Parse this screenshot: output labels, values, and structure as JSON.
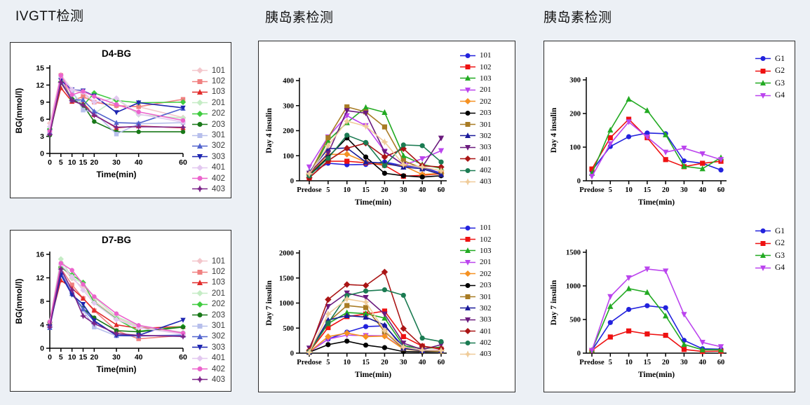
{
  "headers": [
    {
      "text": "IVGTT检测"
    },
    {
      "text": "胰岛素检测"
    },
    {
      "text": "胰岛素检测"
    }
  ],
  "chart_data": [
    {
      "id": "d4_bg",
      "type": "line",
      "title": "D4-BG",
      "xlabel": "Time(min)",
      "ylabel": "BG(mmol/l)",
      "x_mode": "linear",
      "x_values": [
        0,
        5,
        10,
        15,
        20,
        30,
        40,
        60
      ],
      "x_labels": [
        "0",
        "5",
        "10",
        "15",
        "20",
        "30",
        "40",
        "60"
      ],
      "ylim": [
        0,
        15
      ],
      "y_ticks": [
        0,
        3,
        6,
        9,
        12,
        15
      ],
      "grid": false,
      "legend_position": "right",
      "series": [
        {
          "name": "101",
          "color": "#F3C6CB",
          "marker": "diamond",
          "values": [
            5.3,
            13.8,
            11.2,
            10.5,
            9.0,
            8.3,
            8.2,
            6.3
          ]
        },
        {
          "name": "102",
          "color": "#F08080",
          "marker": "square",
          "values": [
            3.8,
            13.7,
            9.2,
            10.0,
            9.0,
            8.4,
            8.2,
            9.5
          ]
        },
        {
          "name": "103",
          "color": "#E12A2A",
          "marker": "triangle",
          "values": [
            3.7,
            11.5,
            9.1,
            8.8,
            6.8,
            4.5,
            4.8,
            4.5
          ]
        },
        {
          "name": "201",
          "color": "#C5ECC5",
          "marker": "diamond",
          "values": [
            4.3,
            13.2,
            10.8,
            8.4,
            7.0,
            9.6,
            6.8,
            6.2
          ]
        },
        {
          "name": "202",
          "color": "#3FCB3F",
          "marker": "diamond",
          "values": [
            4.3,
            12.6,
            9.6,
            8.4,
            10.6,
            9.3,
            8.9,
            9.0
          ]
        },
        {
          "name": "203",
          "color": "#187818",
          "marker": "circle",
          "values": [
            3.2,
            12.4,
            9.5,
            8.5,
            5.6,
            3.8,
            3.8,
            3.8
          ]
        },
        {
          "name": "301",
          "color": "#B7BFEC",
          "marker": "square",
          "values": [
            3.6,
            13.5,
            11.0,
            7.6,
            7.2,
            3.4,
            5.2,
            5.4
          ]
        },
        {
          "name": "302",
          "color": "#5163CE",
          "marker": "triangle",
          "values": [
            3.7,
            12.7,
            9.4,
            9.4,
            7.4,
            5.4,
            5.3,
            7.9
          ]
        },
        {
          "name": "303",
          "color": "#1D25B0",
          "marker": "triangle-down",
          "values": [
            3.8,
            12.8,
            11.2,
            11.0,
            10.1,
            7.2,
            8.9,
            8.0
          ]
        },
        {
          "name": "401",
          "color": "#E3C8F0",
          "marker": "diamond",
          "values": [
            4.7,
            13.6,
            11.2,
            10.8,
            9.0,
            9.7,
            6.9,
            5.5
          ]
        },
        {
          "name": "402",
          "color": "#EC63CC",
          "marker": "circle",
          "values": [
            3.9,
            13.7,
            10.3,
            10.9,
            10.0,
            8.6,
            7.3,
            5.8
          ]
        },
        {
          "name": "403",
          "color": "#7B2488",
          "marker": "star",
          "values": [
            3.3,
            12.5,
            9.3,
            8.5,
            6.7,
            4.6,
            4.7,
            4.6
          ]
        }
      ]
    },
    {
      "id": "d7_bg",
      "type": "line",
      "title": "D7-BG",
      "xlabel": "Time(min)",
      "ylabel": "BG(mmol/l)",
      "x_mode": "linear",
      "x_values": [
        0,
        5,
        10,
        15,
        20,
        30,
        40,
        60
      ],
      "x_labels": [
        "0",
        "5",
        "10",
        "15",
        "20",
        "30",
        "40",
        "60"
      ],
      "ylim": [
        0,
        16
      ],
      "y_ticks": [
        0,
        4,
        8,
        12,
        16
      ],
      "grid": false,
      "legend_position": "right",
      "series": [
        {
          "name": "101",
          "color": "#F3C6CB",
          "marker": "diamond",
          "values": [
            4.6,
            14.0,
            11.9,
            10.3,
            8.1,
            5.2,
            3.6,
            2.5
          ]
        },
        {
          "name": "102",
          "color": "#F08080",
          "marker": "square",
          "values": [
            4.2,
            13.6,
            10.8,
            8.5,
            6.4,
            3.0,
            1.6,
            2.2
          ]
        },
        {
          "name": "103",
          "color": "#E12A2A",
          "marker": "triangle",
          "values": [
            4.2,
            11.6,
            10.2,
            8.5,
            6.5,
            4.0,
            3.4,
            3.7
          ]
        },
        {
          "name": "201",
          "color": "#C5ECC5",
          "marker": "diamond",
          "values": [
            4.6,
            15.2,
            12.0,
            11.1,
            8.7,
            5.4,
            3.8,
            2.7
          ]
        },
        {
          "name": "202",
          "color": "#3FCB3F",
          "marker": "diamond",
          "values": [
            4.4,
            13.8,
            12.5,
            11.2,
            7.8,
            5.0,
            2.9,
            3.7
          ]
        },
        {
          "name": "203",
          "color": "#187818",
          "marker": "circle",
          "values": [
            4.4,
            12.7,
            9.2,
            6.8,
            5.2,
            3.0,
            2.8,
            3.6
          ]
        },
        {
          "name": "301",
          "color": "#B7BFEC",
          "marker": "square",
          "values": [
            3.5,
            13.0,
            9.5,
            6.5,
            3.6,
            2.1,
            2.1,
            2.3
          ]
        },
        {
          "name": "302",
          "color": "#5163CE",
          "marker": "triangle",
          "values": [
            3.5,
            12.9,
            9.3,
            6.7,
            4.6,
            2.2,
            2.1,
            2.2
          ]
        },
        {
          "name": "303",
          "color": "#1D25B0",
          "marker": "triangle-down",
          "values": [
            3.7,
            12.5,
            9.1,
            7.5,
            4.7,
            2.2,
            2.2,
            4.8
          ]
        },
        {
          "name": "401",
          "color": "#E3C8F0",
          "marker": "diamond",
          "values": [
            4.5,
            14.3,
            12.2,
            9.9,
            7.7,
            4.9,
            3.5,
            2.4
          ]
        },
        {
          "name": "402",
          "color": "#EC63CC",
          "marker": "circle",
          "values": [
            4.5,
            14.5,
            13.3,
            10.9,
            8.8,
            5.9,
            3.9,
            2.6
          ]
        },
        {
          "name": "403",
          "color": "#7B2488",
          "marker": "star",
          "values": [
            3.6,
            13.5,
            9.9,
            5.5,
            4.2,
            2.5,
            2.2,
            2.0
          ]
        }
      ]
    },
    {
      "id": "day4_individual",
      "type": "line",
      "title": "",
      "xlabel": "Time(min)",
      "ylabel": "Day 4 insulin",
      "x_mode": "category",
      "x_labels": [
        "Predose",
        "5",
        "10",
        "15",
        "20",
        "30",
        "40",
        "60"
      ],
      "ylim": [
        0,
        400
      ],
      "y_ticks": [
        0,
        100,
        200,
        300,
        400
      ],
      "grid": false,
      "legend_position": "right",
      "series": [
        {
          "name": "101",
          "color": "#2222DD",
          "marker": "circle",
          "values": [
            30,
            70,
            64,
            65,
            75,
            60,
            55,
            30
          ]
        },
        {
          "name": "102",
          "color": "#EE1111",
          "marker": "square",
          "values": [
            12,
            78,
            78,
            72,
            62,
            18,
            22,
            28
          ]
        },
        {
          "name": "103",
          "color": "#22AA22",
          "marker": "triangle",
          "values": [
            20,
            160,
            232,
            293,
            273,
            100,
            65,
            50
          ]
        },
        {
          "name": "201",
          "color": "#BB44EE",
          "marker": "triangle-down",
          "values": [
            55,
            175,
            260,
            220,
            118,
            63,
            88,
            120
          ]
        },
        {
          "name": "202",
          "color": "#F59122",
          "marker": "diamond",
          "values": [
            25,
            105,
            106,
            75,
            65,
            60,
            25,
            30
          ]
        },
        {
          "name": "203",
          "color": "#000000",
          "marker": "circle",
          "values": [
            22,
            95,
            171,
            95,
            30,
            20,
            15,
            20
          ]
        },
        {
          "name": "301",
          "color": "#A87B24",
          "marker": "square",
          "values": [
            25,
            172,
            295,
            275,
            215,
            80,
            50,
            25
          ]
        },
        {
          "name": "302",
          "color": "#1A1A99",
          "marker": "triangle",
          "values": [
            35,
            128,
            131,
            75,
            70,
            55,
            48,
            25
          ]
        },
        {
          "name": "303",
          "color": "#6B1B7E",
          "marker": "triangle-down",
          "values": [
            30,
            110,
            280,
            270,
            115,
            65,
            55,
            170
          ]
        },
        {
          "name": "401",
          "color": "#AA1515",
          "marker": "diamond",
          "values": [
            12,
            80,
            130,
            150,
            95,
            128,
            60,
            55
          ]
        },
        {
          "name": "402",
          "color": "#1B7B52",
          "marker": "circle",
          "values": [
            20,
            90,
            182,
            153,
            60,
            143,
            140,
            75
          ]
        },
        {
          "name": "403",
          "color": "#F0CC9A",
          "marker": "star",
          "values": [
            28,
            140,
            238,
            218,
            155,
            65,
            55,
            40
          ]
        }
      ]
    },
    {
      "id": "day7_individual",
      "type": "line",
      "title": "",
      "xlabel": "Time(min)",
      "ylabel": "Day 7 insulin",
      "x_mode": "category",
      "x_labels": [
        "Predose",
        "5",
        "10",
        "15",
        "20",
        "30",
        "40",
        "60"
      ],
      "ylim": [
        0,
        2000
      ],
      "y_ticks": [
        0,
        500,
        1000,
        1500,
        2000
      ],
      "grid": false,
      "legend_position": "right",
      "series": [
        {
          "name": "101",
          "color": "#2222DD",
          "marker": "circle",
          "values": [
            25,
            280,
            420,
            530,
            545,
            130,
            55,
            60
          ]
        },
        {
          "name": "102",
          "color": "#EE1111",
          "marker": "square",
          "values": [
            30,
            510,
            730,
            780,
            840,
            330,
            140,
            80
          ]
        },
        {
          "name": "103",
          "color": "#22AA22",
          "marker": "triangle",
          "values": [
            30,
            590,
            810,
            790,
            700,
            150,
            90,
            120
          ]
        },
        {
          "name": "201",
          "color": "#BB44EE",
          "marker": "triangle-down",
          "values": [
            20,
            280,
            360,
            350,
            345,
            90,
            50,
            60
          ]
        },
        {
          "name": "202",
          "color": "#F59122",
          "marker": "diamond",
          "values": [
            25,
            330,
            400,
            330,
            340,
            80,
            45,
            55
          ]
        },
        {
          "name": "203",
          "color": "#000000",
          "marker": "circle",
          "values": [
            20,
            170,
            240,
            160,
            110,
            30,
            25,
            30
          ]
        },
        {
          "name": "301",
          "color": "#A87B24",
          "marker": "square",
          "values": [
            15,
            620,
            950,
            910,
            430,
            90,
            45,
            40
          ]
        },
        {
          "name": "302",
          "color": "#1A1A99",
          "marker": "triangle",
          "values": [
            25,
            660,
            750,
            720,
            560,
            100,
            50,
            55
          ]
        },
        {
          "name": "303",
          "color": "#6B1B7E",
          "marker": "triangle-down",
          "values": [
            100,
            930,
            1200,
            1110,
            780,
            200,
            70,
            170
          ]
        },
        {
          "name": "401",
          "color": "#AA1515",
          "marker": "diamond",
          "values": [
            50,
            1070,
            1370,
            1350,
            1620,
            490,
            140,
            90
          ]
        },
        {
          "name": "402",
          "color": "#1B7B52",
          "marker": "circle",
          "values": [
            30,
            600,
            1150,
            1240,
            1265,
            1155,
            300,
            230
          ]
        },
        {
          "name": "403",
          "color": "#F0CC9A",
          "marker": "star",
          "values": [
            20,
            780,
            1080,
            1020,
            450,
            120,
            60,
            50
          ]
        }
      ]
    },
    {
      "id": "day4_group",
      "type": "line",
      "title": "",
      "xlabel": "Time(min)",
      "ylabel": "Day 4 insulin",
      "x_mode": "category",
      "x_labels": [
        "Predose",
        "5",
        "10",
        "15",
        "20",
        "30",
        "40",
        "60"
      ],
      "ylim": [
        0,
        300
      ],
      "y_ticks": [
        0,
        100,
        200,
        300
      ],
      "grid": false,
      "legend_position": "right",
      "series": [
        {
          "name": "G1",
          "color": "#2222DD",
          "marker": "circle",
          "values": [
            30,
            102,
            131,
            142,
            140,
            59,
            52,
            32
          ]
        },
        {
          "name": "G2",
          "color": "#EE1111",
          "marker": "square",
          "values": [
            35,
            128,
            183,
            128,
            63,
            42,
            52,
            58
          ]
        },
        {
          "name": "G3",
          "color": "#22AA22",
          "marker": "triangle",
          "values": [
            22,
            151,
            243,
            209,
            137,
            43,
            36,
            69
          ]
        },
        {
          "name": "G4",
          "color": "#BB44EE",
          "marker": "triangle-down",
          "values": [
            13,
            110,
            175,
            130,
            85,
            97,
            80,
            63
          ]
        }
      ]
    },
    {
      "id": "day7_group",
      "type": "line",
      "title": "",
      "xlabel": "Time(min)",
      "ylabel": "Day 7 insulin",
      "x_mode": "category",
      "x_labels": [
        "Predose",
        "5",
        "10",
        "15",
        "20",
        "30",
        "40",
        "60"
      ],
      "ylim": [
        0,
        1500
      ],
      "y_ticks": [
        0,
        500,
        1000,
        1500
      ],
      "grid": false,
      "legend_position": "right",
      "series": [
        {
          "name": "G1",
          "color": "#2222DD",
          "marker": "circle",
          "values": [
            40,
            455,
            650,
            705,
            675,
            190,
            65,
            60
          ]
        },
        {
          "name": "G2",
          "color": "#EE1111",
          "marker": "square",
          "values": [
            40,
            240,
            330,
            285,
            265,
            55,
            25,
            30
          ]
        },
        {
          "name": "G3",
          "color": "#22AA22",
          "marker": "triangle",
          "values": [
            45,
            695,
            960,
            905,
            555,
            130,
            50,
            50
          ]
        },
        {
          "name": "G4",
          "color": "#BB44EE",
          "marker": "triangle-down",
          "values": [
            40,
            840,
            1120,
            1250,
            1220,
            575,
            160,
            95
          ]
        }
      ]
    }
  ]
}
